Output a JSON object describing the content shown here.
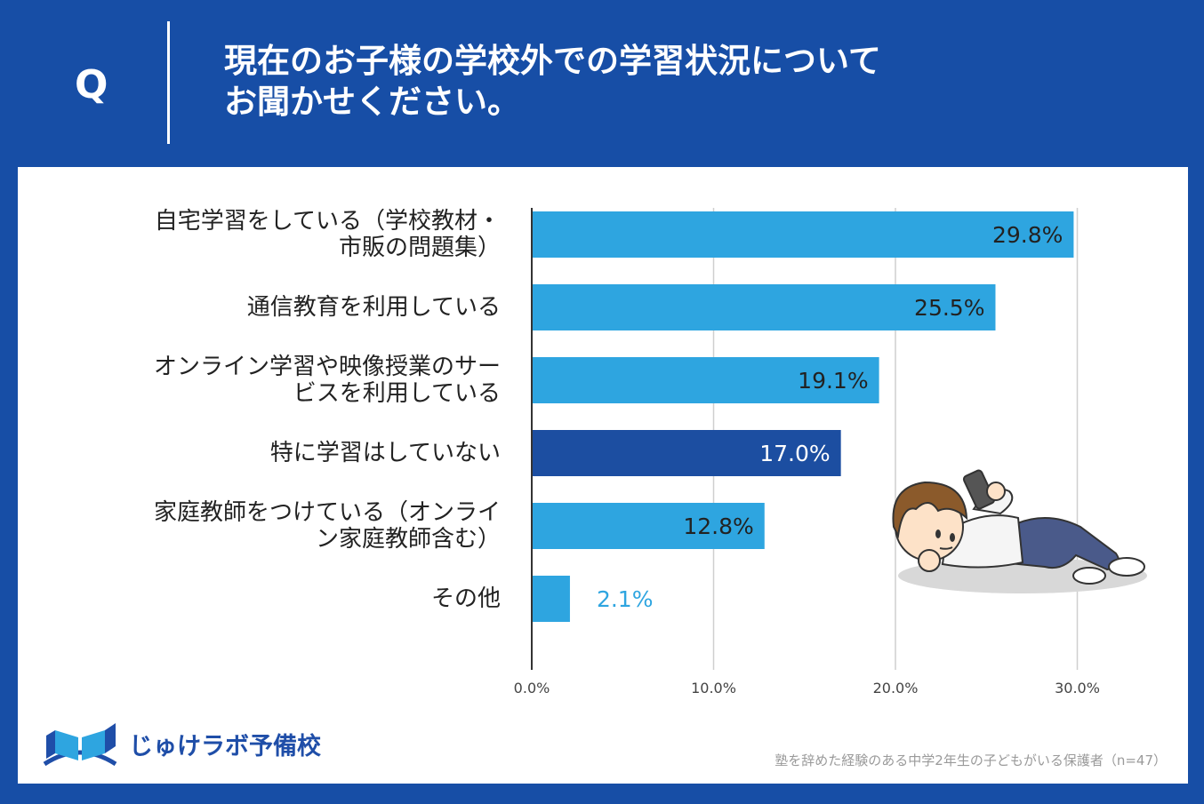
{
  "header": {
    "q_mark": "Q",
    "question_line1": "現在のお子様の学校外での学習状況について",
    "question_line2": "お聞かせください。"
  },
  "chart_data": {
    "type": "bar",
    "orientation": "horizontal",
    "categories": [
      [
        "自宅学習をしている（学校教材・",
        "市販の問題集）"
      ],
      [
        "通信教育を利用している"
      ],
      [
        "オンライン学習や映像授業のサー",
        "ビスを利用している"
      ],
      [
        "特に学習はしていない"
      ],
      [
        "家庭教師をつけている（オンライ",
        "ン家庭教師含む）"
      ],
      [
        "その他"
      ]
    ],
    "values": [
      29.8,
      25.5,
      19.1,
      17.0,
      12.8,
      2.1
    ],
    "value_labels": [
      "29.8%",
      "25.5%",
      "19.1%",
      "17.0%",
      "12.8%",
      "2.1%"
    ],
    "highlight_index": 3,
    "xlim": [
      0,
      30
    ],
    "xticks": [
      "0.0%",
      "10.0%",
      "20.0%",
      "30.0%"
    ],
    "xtick_values": [
      0,
      10,
      20,
      30
    ],
    "grid": true,
    "colors": {
      "bar": "#2ea5e0",
      "highlight_bar": "#1c4ea1",
      "outside_label": "#2ea5e0",
      "inside_label": "#222222",
      "highlight_label": "#ffffff",
      "grid": "#cfcfcf",
      "axis": "#333333"
    }
  },
  "branding": {
    "logo_text": "じゅけラボ予備校",
    "logo_icon": "open-book-icon"
  },
  "footnote": "塾を辞めた経験のある中学2年生の子どもがいる保護者（n=47）",
  "illustration": "boy-lying-with-phone"
}
